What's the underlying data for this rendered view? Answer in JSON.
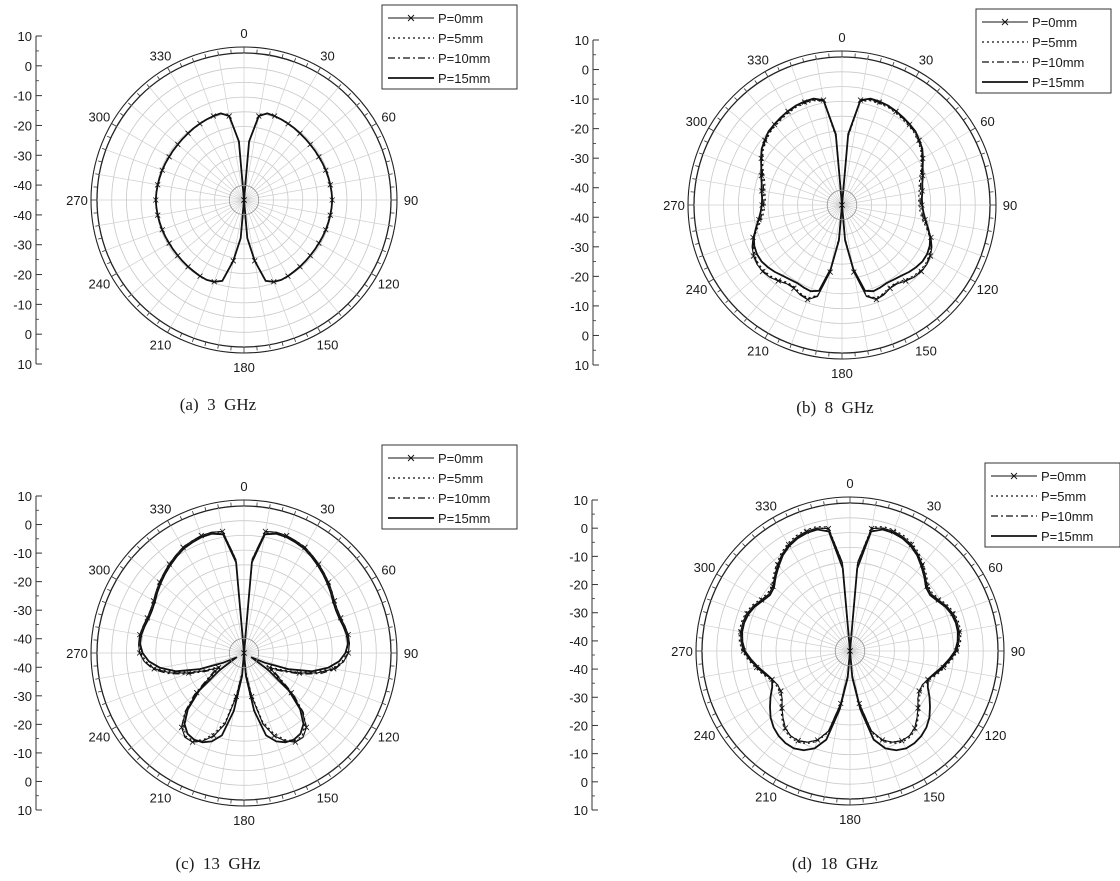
{
  "chart_data": [
    {
      "type": "polar-line",
      "caption": "(a)  3  GHz",
      "angle_labels": [
        "0",
        "30",
        "60",
        "90",
        "120",
        "150",
        "180",
        "210",
        "240",
        "270",
        "300",
        "330"
      ],
      "radial_tick_labels_top": [
        "10",
        "0",
        "-10",
        "-20",
        "-30",
        "-40"
      ],
      "radial_tick_labels_bottom": [
        "-40",
        "-30",
        "-20",
        "-10",
        "0",
        "10"
      ],
      "r_range": [
        -40,
        10
      ],
      "theta_deg": [
        0,
        5,
        10,
        15,
        20,
        25,
        30,
        35,
        40,
        45,
        50,
        55,
        60,
        65,
        70,
        75,
        80,
        85,
        90,
        95,
        100,
        105,
        110,
        115,
        120,
        125,
        130,
        135,
        140,
        145,
        150,
        155,
        160,
        165,
        170,
        175,
        180
      ],
      "series": [
        {
          "name": "P=0mm",
          "style": "x-marker",
          "values": [
            -40,
            -20,
            -11,
            -9.5,
            -9.6,
            -9.8,
            -10,
            -10.2,
            -10.4,
            -10.5,
            -10.6,
            -10.6,
            -10.6,
            -10.5,
            -10.4,
            -10.3,
            -10.2,
            -10.1,
            -10,
            -10.1,
            -10.2,
            -10.3,
            -10.4,
            -10.5,
            -10.6,
            -10.6,
            -10.6,
            -10.5,
            -10.4,
            -10.3,
            -10.1,
            -10,
            -10.4,
            -11.5,
            -19,
            -27,
            -40
          ]
        },
        {
          "name": "P=5mm",
          "style": "dotted",
          "values": [
            -40,
            -20,
            -11,
            -9.5,
            -9.6,
            -9.8,
            -10,
            -10.2,
            -10.4,
            -10.5,
            -10.6,
            -10.6,
            -10.6,
            -10.5,
            -10.4,
            -10.3,
            -10.2,
            -10.1,
            -10,
            -10.1,
            -10.2,
            -10.3,
            -10.4,
            -10.5,
            -10.6,
            -10.6,
            -10.6,
            -10.5,
            -10.4,
            -10.3,
            -10.1,
            -10,
            -10.4,
            -11.5,
            -19,
            -27,
            -40
          ]
        },
        {
          "name": "P=10mm",
          "style": "dashdot",
          "values": [
            -40,
            -20,
            -11,
            -9.5,
            -9.6,
            -9.8,
            -10,
            -10.2,
            -10.4,
            -10.5,
            -10.6,
            -10.6,
            -10.6,
            -10.5,
            -10.4,
            -10.3,
            -10.2,
            -10.1,
            -10,
            -10.1,
            -10.2,
            -10.3,
            -10.4,
            -10.5,
            -10.6,
            -10.6,
            -10.6,
            -10.5,
            -10.4,
            -10.3,
            -10.1,
            -10,
            -10.4,
            -11.5,
            -19,
            -27,
            -40
          ]
        },
        {
          "name": "P=15mm",
          "style": "solid",
          "values": [
            -40,
            -20,
            -11,
            -9.5,
            -9.6,
            -9.8,
            -10,
            -10.2,
            -10.4,
            -10.5,
            -10.6,
            -10.6,
            -10.6,
            -10.5,
            -10.4,
            -10.3,
            -10.2,
            -10.1,
            -10,
            -10.1,
            -10.2,
            -10.3,
            -10.4,
            -10.5,
            -10.6,
            -10.6,
            -10.6,
            -10.5,
            -10.4,
            -10.3,
            -10.1,
            -10,
            -10.4,
            -11.5,
            -19,
            -27,
            -40
          ]
        }
      ]
    },
    {
      "type": "polar-line",
      "caption": "(b)  8  GHz",
      "angle_labels": [
        "0",
        "30",
        "60",
        "90",
        "120",
        "150",
        "180",
        "210",
        "240",
        "270",
        "300",
        "330"
      ],
      "radial_tick_labels_top": [
        "10",
        "0",
        "-10",
        "-20",
        "-30",
        "-40"
      ],
      "radial_tick_labels_bottom": [
        "-40",
        "-30",
        "-20",
        "-10",
        "0",
        "10"
      ],
      "r_range": [
        -40,
        10
      ],
      "theta_deg": [
        0,
        5,
        10,
        15,
        20,
        25,
        30,
        35,
        40,
        45,
        50,
        55,
        60,
        65,
        70,
        75,
        80,
        85,
        90,
        95,
        100,
        105,
        110,
        115,
        120,
        125,
        130,
        135,
        140,
        145,
        150,
        155,
        160,
        165,
        170,
        175,
        180
      ],
      "series": [
        {
          "name": "P=0mm",
          "style": "x-marker",
          "values": [
            -40,
            -16,
            -4,
            -3,
            -3,
            -3,
            -3.5,
            -4,
            -4.5,
            -5,
            -6,
            -7,
            -8.5,
            -10,
            -11,
            -12,
            -12.5,
            -13,
            -13,
            -12.5,
            -11.5,
            -10,
            -8,
            -6.5,
            -5.5,
            -5,
            -5,
            -5.5,
            -6.5,
            -7.5,
            -7.5,
            -6.5,
            -6,
            -8,
            -17,
            -28,
            -40
          ]
        },
        {
          "name": "P=5mm",
          "style": "dotted",
          "values": [
            -40,
            -17,
            -4.5,
            -3.5,
            -3.5,
            -3.5,
            -4,
            -4.5,
            -5,
            -5.5,
            -6.5,
            -7.5,
            -9,
            -10.5,
            -12,
            -13,
            -13.5,
            -14,
            -14,
            -13.5,
            -12.5,
            -10.5,
            -8.5,
            -7,
            -6,
            -5.5,
            -5.5,
            -6,
            -7,
            -8,
            -8,
            -7,
            -6.5,
            -8.5,
            -18,
            -29,
            -40
          ]
        },
        {
          "name": "P=10mm",
          "style": "dashdot",
          "values": [
            -40,
            -16.5,
            -4.2,
            -3.2,
            -3.2,
            -3.2,
            -3.7,
            -4.2,
            -4.7,
            -5.2,
            -6.2,
            -7.2,
            -8.7,
            -10.2,
            -11.5,
            -12.5,
            -13,
            -13.5,
            -13.5,
            -13,
            -12,
            -10.2,
            -8.2,
            -6.7,
            -5.7,
            -5.2,
            -5.2,
            -5.7,
            -6.7,
            -7.7,
            -7.7,
            -6.7,
            -6.2,
            -8.2,
            -17.5,
            -28.5,
            -40
          ]
        },
        {
          "name": "P=15mm",
          "style": "solid",
          "values": [
            -40,
            -16,
            -4,
            -2.8,
            -2.8,
            -3,
            -3.4,
            -3.9,
            -4.4,
            -4.9,
            -5.9,
            -6.9,
            -8.4,
            -9.9,
            -10.9,
            -11.9,
            -12.4,
            -12.9,
            -12.9,
            -12.4,
            -11.4,
            -9.9,
            -8.3,
            -7.3,
            -6.8,
            -6.8,
            -7.3,
            -8,
            -8.8,
            -9.3,
            -9.6,
            -9.3,
            -9,
            -10,
            -18,
            -28,
            -40
          ]
        }
      ]
    },
    {
      "type": "polar-line",
      "caption": "(c)  13  GHz",
      "angle_labels": [
        "0",
        "30",
        "60",
        "90",
        "120",
        "150",
        "180",
        "210",
        "240",
        "270",
        "300",
        "330"
      ],
      "radial_tick_labels_top": [
        "10",
        "0",
        "-10",
        "-20",
        "-30",
        "-40"
      ],
      "radial_tick_labels_bottom": [
        "-40",
        "-30",
        "-20",
        "-10",
        "0",
        "10"
      ],
      "r_range": [
        -40,
        10
      ],
      "theta_deg": [
        0,
        5,
        10,
        15,
        20,
        25,
        30,
        35,
        40,
        45,
        50,
        55,
        60,
        65,
        70,
        75,
        80,
        85,
        90,
        95,
        100,
        105,
        110,
        115,
        120,
        125,
        130,
        135,
        140,
        145,
        150,
        155,
        160,
        165,
        170,
        175,
        180
      ],
      "series": [
        {
          "name": "P=0mm",
          "style": "x-marker",
          "values": [
            -40,
            -8,
            2,
            2.5,
            2.5,
            2,
            1.5,
            0.5,
            -0.5,
            -1.5,
            -2.5,
            -3.5,
            -4.5,
            -5,
            -5,
            -4.5,
            -4,
            -4,
            -4.5,
            -6,
            -9,
            -14,
            -20,
            -26,
            -30,
            -26,
            -19,
            -12,
            -7,
            -5,
            -5,
            -7,
            -10,
            -15,
            -25,
            -33,
            -40
          ]
        },
        {
          "name": "P=5mm",
          "style": "dotted",
          "values": [
            -40,
            -8,
            1.5,
            2,
            2,
            1.5,
            1,
            0,
            -1,
            -2,
            -3,
            -4,
            -5,
            -5.5,
            -5.5,
            -5,
            -4.5,
            -4.5,
            -5,
            -6.5,
            -9.5,
            -15,
            -21,
            -27,
            -31,
            -27,
            -20,
            -13,
            -8,
            -5.5,
            -5.5,
            -7.5,
            -11,
            -16,
            -26,
            -34,
            -40
          ]
        },
        {
          "name": "P=10mm",
          "style": "dashdot",
          "values": [
            -40,
            -8,
            2,
            2.5,
            2.5,
            2,
            1.5,
            0.5,
            -0.5,
            -1.5,
            -2.5,
            -3.5,
            -4.5,
            -5,
            -5,
            -4.5,
            -4,
            -4,
            -4.5,
            -6,
            -8.5,
            -13,
            -19,
            -25,
            -29,
            -25,
            -18,
            -11.5,
            -7,
            -5,
            -5,
            -7,
            -10,
            -15,
            -25,
            -33,
            -40
          ]
        },
        {
          "name": "P=15mm",
          "style": "solid",
          "values": [
            -40,
            -9,
            1,
            2,
            2,
            1.5,
            1,
            0,
            -1,
            -2,
            -3,
            -4,
            -5,
            -5.5,
            -5.5,
            -5,
            -4.5,
            -4.5,
            -5.5,
            -7.5,
            -11,
            -16,
            -24,
            -32,
            -37,
            -30,
            -20,
            -13,
            -8.5,
            -6.5,
            -6,
            -6.5,
            -8,
            -11,
            -20,
            -32,
            -40
          ]
        }
      ]
    },
    {
      "type": "polar-line",
      "caption": "(d)  18  GHz",
      "angle_labels": [
        "0",
        "30",
        "60",
        "90",
        "120",
        "150",
        "180",
        "210",
        "240",
        "270",
        "300",
        "330"
      ],
      "radial_tick_labels_top": [
        "10",
        "0",
        "-10",
        "-20",
        "-30",
        "-40"
      ],
      "radial_tick_labels_bottom": [
        "-40",
        "-30",
        "-20",
        "-10",
        "0",
        "10"
      ],
      "r_range": [
        -40,
        10
      ],
      "theta_deg": [
        0,
        5,
        10,
        15,
        20,
        25,
        30,
        35,
        40,
        45,
        50,
        55,
        60,
        65,
        70,
        75,
        80,
        85,
        90,
        95,
        100,
        105,
        110,
        115,
        120,
        125,
        130,
        135,
        140,
        145,
        150,
        155,
        160,
        165,
        170,
        175,
        180
      ],
      "series": [
        {
          "name": "P=0mm",
          "style": "x-marker",
          "values": [
            -40,
            -10,
            2,
            3,
            3,
            2.5,
            1.5,
            0,
            -2,
            -4,
            -6,
            -6.5,
            -5.5,
            -4,
            -3,
            -2.5,
            -2.5,
            -3,
            -4,
            -6,
            -8,
            -10,
            -12,
            -13,
            -13,
            -12,
            -10,
            -8,
            -6,
            -5,
            -5,
            -6,
            -8,
            -12,
            -22,
            -32,
            -40
          ]
        },
        {
          "name": "P=5mm",
          "style": "dotted",
          "values": [
            -40,
            -10,
            2.5,
            3.5,
            3.5,
            3,
            2,
            0.5,
            -1.5,
            -3.5,
            -5.5,
            -6,
            -5,
            -3.5,
            -2.5,
            -2,
            -2,
            -2.5,
            -3.5,
            -5.5,
            -7.5,
            -9.5,
            -11.5,
            -12.5,
            -12.5,
            -11.5,
            -9.5,
            -7.5,
            -5.5,
            -4.5,
            -4.5,
            -5.5,
            -7.5,
            -11.5,
            -21,
            -31,
            -40
          ]
        },
        {
          "name": "P=10mm",
          "style": "dashdot",
          "values": [
            -40,
            -10,
            2,
            3,
            3,
            2.5,
            1.5,
            0,
            -2,
            -4,
            -6,
            -6.5,
            -5.5,
            -4,
            -3,
            -2.5,
            -2.5,
            -3,
            -4,
            -6,
            -8,
            -10,
            -12,
            -13,
            -13,
            -12,
            -10,
            -8,
            -6,
            -5,
            -5,
            -6,
            -8,
            -12,
            -22,
            -32,
            -40
          ]
        },
        {
          "name": "P=15mm",
          "style": "solid",
          "values": [
            -40,
            -12,
            1,
            2.5,
            2.5,
            2,
            1,
            -0.5,
            -2.5,
            -4.5,
            -6.5,
            -7,
            -6,
            -4.5,
            -3.5,
            -3,
            -3,
            -3.5,
            -4.5,
            -6.5,
            -8.5,
            -10.5,
            -12,
            -11,
            -9,
            -7,
            -5,
            -3.5,
            -2.5,
            -2,
            -2,
            -3,
            -5,
            -9,
            -20,
            -31,
            -40
          ]
        }
      ]
    }
  ]
}
